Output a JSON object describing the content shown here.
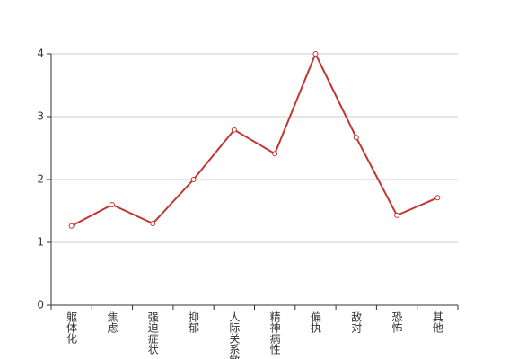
{
  "chart_data": {
    "type": "line",
    "categories": [
      "躯体化",
      "焦虑",
      "强迫症状",
      "抑郁",
      "人际关系敏感",
      "精神病性",
      "偏执",
      "敌对",
      "恐怖",
      "其他"
    ],
    "values": [
      1.26,
      1.6,
      1.3,
      2.0,
      2.79,
      2.41,
      4.0,
      2.67,
      1.43,
      1.71
    ],
    "color": "#c23531",
    "ylim": [
      0,
      4
    ],
    "yticks": [
      0,
      1,
      2,
      3,
      4
    ],
    "grid": true
  }
}
